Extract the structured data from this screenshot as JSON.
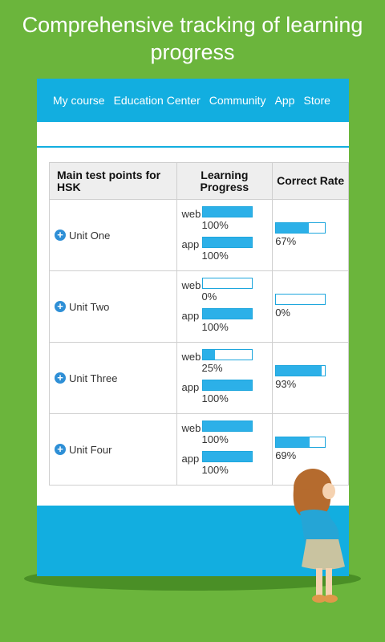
{
  "headline": "Comprehensive tracking of learning progress",
  "nav": [
    "My course",
    "Education Center",
    "Community",
    "App",
    "Store"
  ],
  "table": {
    "headers": {
      "unit": "Main test points for HSK",
      "progress": "Learning Progress",
      "rate": "Correct Rate"
    },
    "rows": [
      {
        "unit": "Unit One",
        "web_label": "web",
        "web_value": "100%",
        "web_fraction": 1.0,
        "app_label": "app",
        "app_value": "100%",
        "app_fraction": 1.0,
        "rate_value": "67%",
        "rate_fraction": 0.67
      },
      {
        "unit": "Unit Two",
        "web_label": "web",
        "web_value": "0%",
        "web_fraction": 0.0,
        "app_label": "app",
        "app_value": "100%",
        "app_fraction": 1.0,
        "rate_value": "0%",
        "rate_fraction": 0.0
      },
      {
        "unit": "Unit Three",
        "web_label": "web",
        "web_value": "25%",
        "web_fraction": 0.25,
        "app_label": "app",
        "app_value": "100%",
        "app_fraction": 1.0,
        "rate_value": "93%",
        "rate_fraction": 0.93
      },
      {
        "unit": "Unit Four",
        "web_label": "web",
        "web_value": "100%",
        "web_fraction": 1.0,
        "app_label": "app",
        "app_value": "100%",
        "app_fraction": 1.0,
        "rate_value": "69%",
        "rate_fraction": 0.69
      }
    ]
  },
  "icons": {
    "expand": "plus-circle-icon"
  },
  "colors": {
    "background": "#6bb53c",
    "accent": "#12aee0",
    "bar_fill": "#2cb0e8"
  }
}
